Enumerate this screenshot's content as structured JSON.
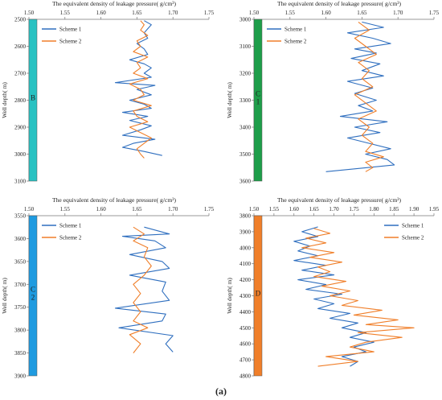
{
  "figure_label": "(a)",
  "chart_data": [
    {
      "type": "line",
      "title": "The equivalent density of leakage pressure( g/cm³)",
      "ylabel": "Well depth( m)",
      "xlim": [
        1.5,
        1.75
      ],
      "xticks": [
        "1.50",
        "1.55",
        "1.60",
        "1.65",
        "1.70",
        "1.75"
      ],
      "ylim": [
        2500,
        3100
      ],
      "yticks": [
        2500,
        2600,
        2700,
        2800,
        2900,
        3000,
        3100
      ],
      "y_inverted": true,
      "strata_label": "B",
      "strata_color": "#29c2c2",
      "legend_position": "top-left",
      "series": [
        {
          "name": "Scheme 1",
          "color": "#2f6fbf",
          "points": [
            [
              1.66,
              2505
            ],
            [
              1.67,
              2520
            ],
            [
              1.665,
              2535
            ],
            [
              1.66,
              2550
            ],
            [
              1.665,
              2570
            ],
            [
              1.65,
              2590
            ],
            [
              1.66,
              2610
            ],
            [
              1.665,
              2630
            ],
            [
              1.64,
              2650
            ],
            [
              1.66,
              2665
            ],
            [
              1.67,
              2680
            ],
            [
              1.66,
              2700
            ],
            [
              1.67,
              2715
            ],
            [
              1.62,
              2735
            ],
            [
              1.675,
              2745
            ],
            [
              1.65,
              2760
            ],
            [
              1.67,
              2780
            ],
            [
              1.64,
              2800
            ],
            [
              1.66,
              2815
            ],
            [
              1.67,
              2830
            ],
            [
              1.63,
              2845
            ],
            [
              1.665,
              2860
            ],
            [
              1.64,
              2875
            ],
            [
              1.67,
              2895
            ],
            [
              1.655,
              2910
            ],
            [
              1.63,
              2930
            ],
            [
              1.675,
              2945
            ],
            [
              1.645,
              2960
            ],
            [
              1.63,
              2975
            ],
            [
              1.66,
              2990
            ],
            [
              1.685,
              3005
            ]
          ]
        },
        {
          "name": "Scheme 2",
          "color": "#f07f2a",
          "points": [
            [
              1.655,
              2505
            ],
            [
              1.66,
              2520
            ],
            [
              1.655,
              2540
            ],
            [
              1.665,
              2560
            ],
            [
              1.65,
              2580
            ],
            [
              1.655,
              2600
            ],
            [
              1.645,
              2620
            ],
            [
              1.665,
              2640
            ],
            [
              1.65,
              2660
            ],
            [
              1.655,
              2680
            ],
            [
              1.645,
              2700
            ],
            [
              1.665,
              2720
            ],
            [
              1.64,
              2740
            ],
            [
              1.655,
              2760
            ],
            [
              1.66,
              2780
            ],
            [
              1.645,
              2800
            ],
            [
              1.67,
              2820
            ],
            [
              1.645,
              2840
            ],
            [
              1.65,
              2860
            ],
            [
              1.665,
              2880
            ],
            [
              1.64,
              2900
            ],
            [
              1.655,
              2920
            ],
            [
              1.67,
              2940
            ],
            [
              1.66,
              2960
            ],
            [
              1.65,
              2980
            ],
            [
              1.655,
              3000
            ],
            [
              1.66,
              3015
            ]
          ]
        }
      ]
    },
    {
      "type": "line",
      "title": "The equivalent density of leakage pressure( g/cm³)",
      "ylabel": "Well depth( m)",
      "xlim": [
        1.5,
        1.75
      ],
      "xticks": [
        "1.50",
        "1.55",
        "1.60",
        "1.65",
        "1.70",
        "1.75"
      ],
      "ylim": [
        3000,
        3600
      ],
      "yticks": [
        3000,
        3100,
        3200,
        3300,
        3400,
        3500,
        3600
      ],
      "y_inverted": true,
      "strata_label": "C\n1",
      "strata_color": "#1e9e4a",
      "legend_position": "top-left",
      "series": [
        {
          "name": "Scheme 1",
          "color": "#2f6fbf",
          "points": [
            [
              1.65,
              3010
            ],
            [
              1.68,
              3030
            ],
            [
              1.63,
              3050
            ],
            [
              1.665,
              3070
            ],
            [
              1.69,
              3090
            ],
            [
              1.64,
              3110
            ],
            [
              1.67,
              3125
            ],
            [
              1.635,
              3145
            ],
            [
              1.675,
              3165
            ],
            [
              1.65,
              3190
            ],
            [
              1.68,
              3210
            ],
            [
              1.63,
              3230
            ],
            [
              1.665,
              3255
            ],
            [
              1.64,
              3275
            ],
            [
              1.67,
              3300
            ],
            [
              1.645,
              3320
            ],
            [
              1.665,
              3340
            ],
            [
              1.62,
              3360
            ],
            [
              1.685,
              3380
            ],
            [
              1.64,
              3400
            ],
            [
              1.675,
              3420
            ],
            [
              1.63,
              3440
            ],
            [
              1.66,
              3460
            ],
            [
              1.69,
              3480
            ],
            [
              1.655,
              3500
            ],
            [
              1.685,
              3520
            ],
            [
              1.695,
              3540
            ],
            [
              1.6,
              3565
            ]
          ]
        },
        {
          "name": "Scheme 2",
          "color": "#f07f2a",
          "points": [
            [
              1.645,
              3010
            ],
            [
              1.66,
              3040
            ],
            [
              1.64,
              3070
            ],
            [
              1.655,
              3100
            ],
            [
              1.67,
              3130
            ],
            [
              1.645,
              3160
            ],
            [
              1.66,
              3190
            ],
            [
              1.65,
              3220
            ],
            [
              1.665,
              3250
            ],
            [
              1.64,
              3280
            ],
            [
              1.655,
              3310
            ],
            [
              1.67,
              3340
            ],
            [
              1.645,
              3370
            ],
            [
              1.66,
              3400
            ],
            [
              1.65,
              3430
            ],
            [
              1.665,
              3460
            ],
            [
              1.655,
              3490
            ],
            [
              1.68,
              3510
            ],
            [
              1.655,
              3530
            ],
            [
              1.665,
              3550
            ],
            [
              1.655,
              3565
            ]
          ]
        }
      ]
    },
    {
      "type": "line",
      "title": "The equivalent density of leakage pressure( g/cm³)",
      "ylabel": "Well depth( m)",
      "xlim": [
        1.5,
        1.75
      ],
      "xticks": [
        "1.50",
        "1.55",
        "1.60",
        "1.65",
        "1.70",
        "1.75"
      ],
      "ylim": [
        3550,
        3900
      ],
      "yticks": [
        3550,
        3600,
        3650,
        3700,
        3750,
        3800,
        3850,
        3900
      ],
      "y_inverted": true,
      "strata_label": "C\n2",
      "strata_color": "#1f9be0",
      "legend_position": "top-left",
      "series": [
        {
          "name": "Scheme 1",
          "color": "#2f6fbf",
          "points": [
            [
              1.66,
              3575
            ],
            [
              1.695,
              3590
            ],
            [
              1.63,
              3595
            ],
            [
              1.675,
              3605
            ],
            [
              1.69,
              3620
            ],
            [
              1.64,
              3635
            ],
            [
              1.685,
              3650
            ],
            [
              1.695,
              3665
            ],
            [
              1.64,
              3680
            ],
            [
              1.69,
              3695
            ],
            [
              1.685,
              3715
            ],
            [
              1.695,
              3735
            ],
            [
              1.62,
              3752
            ],
            [
              1.69,
              3765
            ],
            [
              1.685,
              3780
            ],
            [
              1.625,
              3795
            ],
            [
              1.7,
              3812
            ],
            [
              1.69,
              3830
            ],
            [
              1.7,
              3848
            ]
          ]
        },
        {
          "name": "Scheme 2",
          "color": "#f07f2a",
          "points": [
            [
              1.645,
              3575
            ],
            [
              1.66,
              3590
            ],
            [
              1.645,
              3605
            ],
            [
              1.665,
              3620
            ],
            [
              1.66,
              3640
            ],
            [
              1.67,
              3660
            ],
            [
              1.66,
              3680
            ],
            [
              1.645,
              3700
            ],
            [
              1.655,
              3720
            ],
            [
              1.645,
              3740
            ],
            [
              1.655,
              3760
            ],
            [
              1.645,
              3780
            ],
            [
              1.665,
              3795
            ],
            [
              1.64,
              3810
            ],
            [
              1.655,
              3830
            ],
            [
              1.645,
              3850
            ]
          ]
        }
      ]
    },
    {
      "type": "line",
      "title": "The equivalent density of leakage pressure( g/cm³)",
      "ylabel": "Well depth( m)",
      "xlim": [
        1.5,
        1.95
      ],
      "xticks": [
        "1.50",
        "1.55",
        "1.60",
        "1.65",
        "1.70",
        "1.75",
        "1.80",
        "1.85",
        "1.90",
        "1.95"
      ],
      "ylim": [
        3800,
        4800
      ],
      "yticks": [
        3800,
        3900,
        4000,
        4100,
        4200,
        4300,
        4400,
        4500,
        4600,
        4700,
        4800
      ],
      "y_inverted": true,
      "strata_label": "D",
      "strata_color": "#f07f2a",
      "legend_position": "top-right",
      "series": [
        {
          "name": "Scheme 1",
          "color": "#2f6fbf",
          "points": [
            [
              1.66,
              3870
            ],
            [
              1.62,
              3900
            ],
            [
              1.66,
              3930
            ],
            [
              1.6,
              3960
            ],
            [
              1.64,
              3990
            ],
            [
              1.61,
              4020
            ],
            [
              1.66,
              4050
            ],
            [
              1.6,
              4080
            ],
            [
              1.68,
              4110
            ],
            [
              1.62,
              4140
            ],
            [
              1.7,
              4170
            ],
            [
              1.61,
              4200
            ],
            [
              1.68,
              4230
            ],
            [
              1.63,
              4260
            ],
            [
              1.72,
              4290
            ],
            [
              1.65,
              4320
            ],
            [
              1.7,
              4350
            ],
            [
              1.66,
              4380
            ],
            [
              1.74,
              4410
            ],
            [
              1.69,
              4440
            ],
            [
              1.76,
              4470
            ],
            [
              1.72,
              4500
            ],
            [
              1.78,
              4530
            ],
            [
              1.74,
              4560
            ],
            [
              1.8,
              4590
            ],
            [
              1.75,
              4620
            ],
            [
              1.78,
              4650
            ],
            [
              1.72,
              4680
            ],
            [
              1.76,
              4710
            ],
            [
              1.74,
              4740
            ]
          ]
        },
        {
          "name": "Scheme 2",
          "color": "#f07f2a",
          "points": [
            [
              1.65,
              3880
            ],
            [
              1.69,
              3910
            ],
            [
              1.63,
              3940
            ],
            [
              1.68,
              3970
            ],
            [
              1.62,
              4000
            ],
            [
              1.7,
              4030
            ],
            [
              1.64,
              4060
            ],
            [
              1.72,
              4090
            ],
            [
              1.66,
              4120
            ],
            [
              1.69,
              4150
            ],
            [
              1.65,
              4180
            ],
            [
              1.73,
              4210
            ],
            [
              1.67,
              4240
            ],
            [
              1.74,
              4270
            ],
            [
              1.69,
              4300
            ],
            [
              1.76,
              4330
            ],
            [
              1.72,
              4360
            ],
            [
              1.82,
              4390
            ],
            [
              1.75,
              4420
            ],
            [
              1.86,
              4450
            ],
            [
              1.78,
              4480
            ],
            [
              1.9,
              4500
            ],
            [
              1.76,
              4530
            ],
            [
              1.87,
              4560
            ],
            [
              1.78,
              4590
            ],
            [
              1.74,
              4620
            ],
            [
              1.8,
              4650
            ],
            [
              1.68,
              4680
            ],
            [
              1.76,
              4710
            ],
            [
              1.66,
              4740
            ]
          ]
        }
      ]
    }
  ]
}
